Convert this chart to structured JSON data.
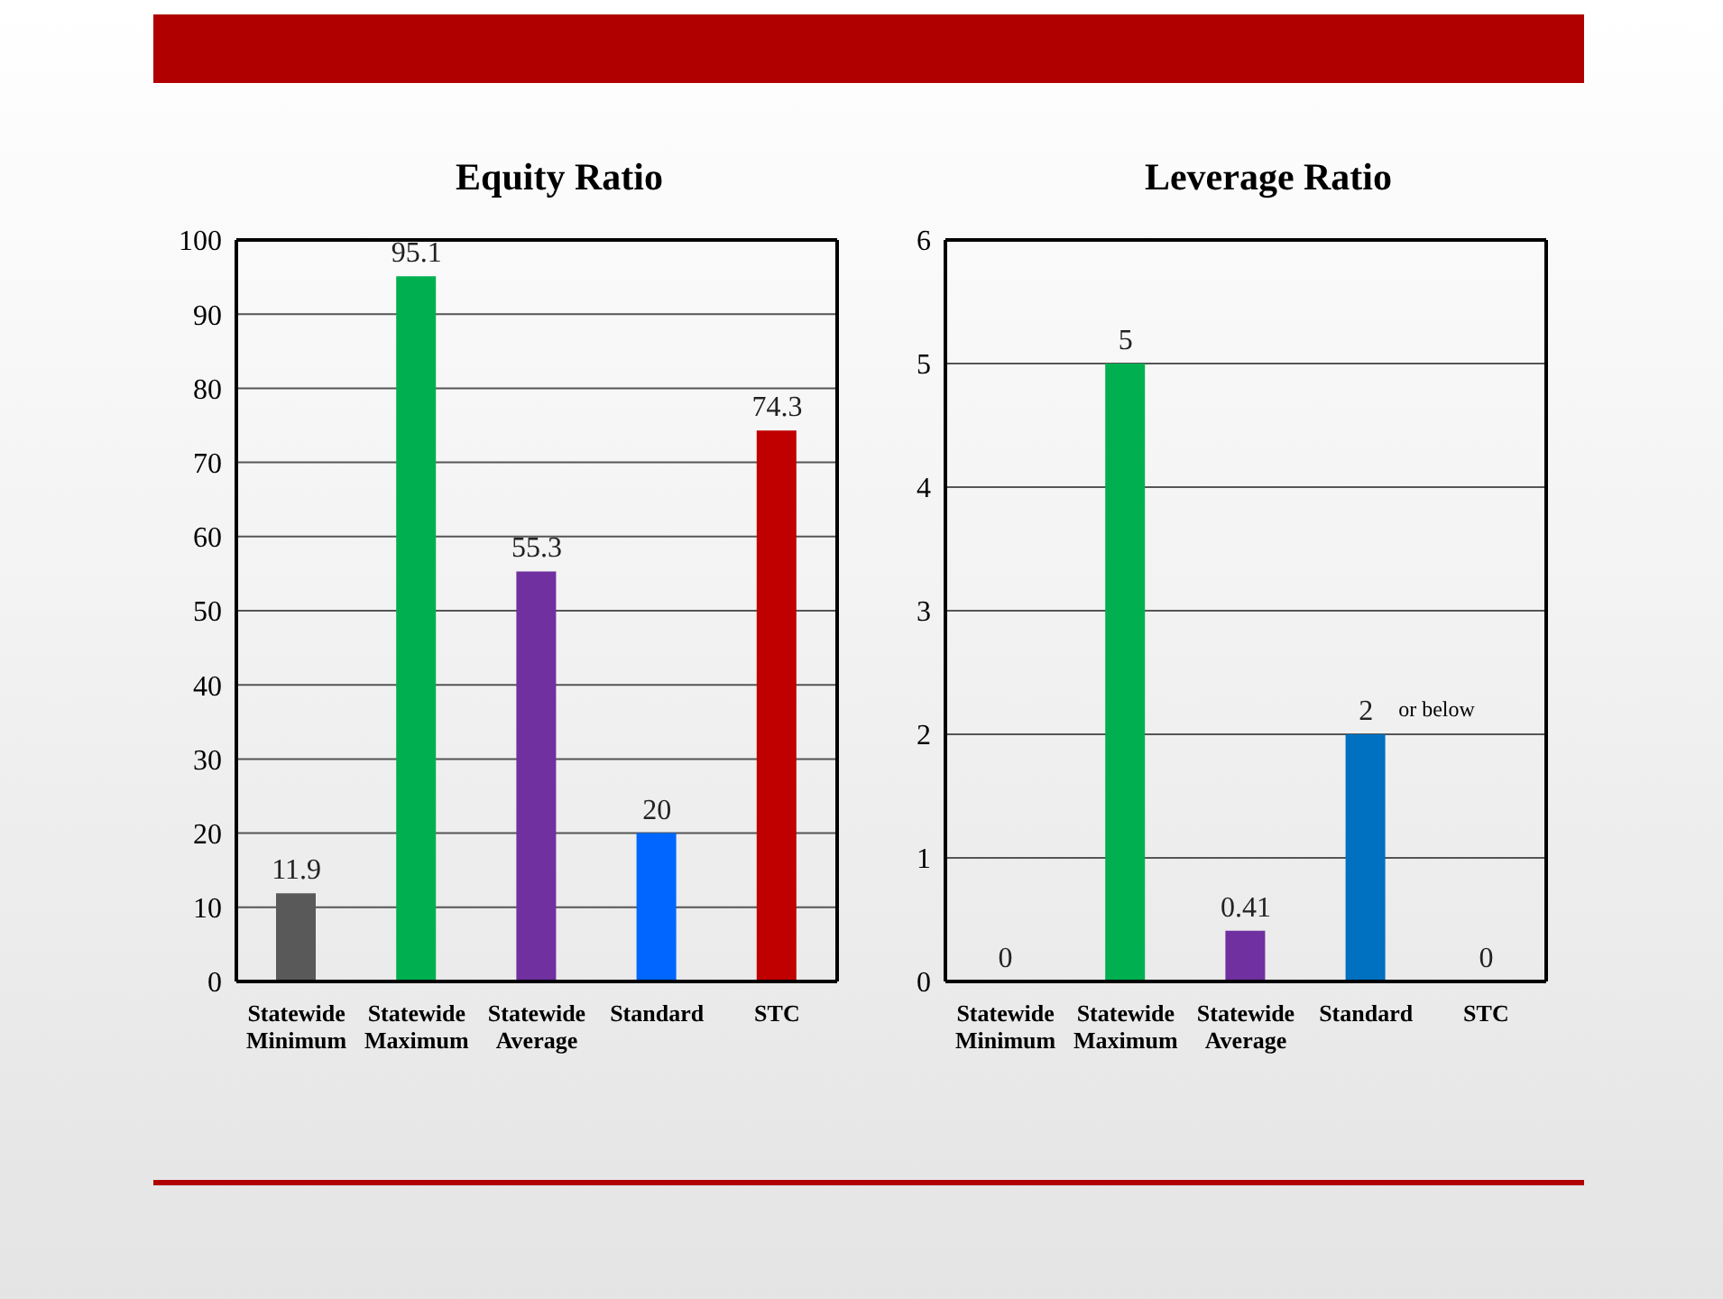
{
  "chart_data": [
    {
      "type": "bar",
      "title": "Equity Ratio",
      "categories": [
        "Statewide Minimum",
        "Statewide Maximum",
        "Statewide Average",
        "Standard",
        "STC"
      ],
      "values": [
        11.9,
        95.1,
        55.3,
        20,
        74.3
      ],
      "colors": [
        "#595959",
        "#00b050",
        "#7030a0",
        "#0066ff",
        "#c00000"
      ],
      "ylim": [
        0,
        100
      ],
      "yticks": [
        0,
        10,
        20,
        30,
        40,
        50,
        60,
        70,
        80,
        90,
        100
      ],
      "grid": "y",
      "data_labels": true
    },
    {
      "type": "bar",
      "title": "Leverage Ratio",
      "categories": [
        "Statewide Minimum",
        "Statewide Maximum",
        "Statewide Average",
        "Standard",
        "STC"
      ],
      "values": [
        0,
        5,
        0.41,
        2,
        0
      ],
      "value_labels": [
        "0",
        "5",
        "0.41",
        "2",
        "0"
      ],
      "colors": [
        "#595959",
        "#00b050",
        "#7030a0",
        "#0070c0",
        "#c00000"
      ],
      "ylim": [
        0,
        6
      ],
      "yticks": [
        0,
        1,
        2,
        3,
        4,
        5,
        6
      ],
      "grid": "y",
      "annotations": [
        {
          "text": "or below",
          "x": "Standard",
          "y": 2
        }
      ]
    }
  ]
}
